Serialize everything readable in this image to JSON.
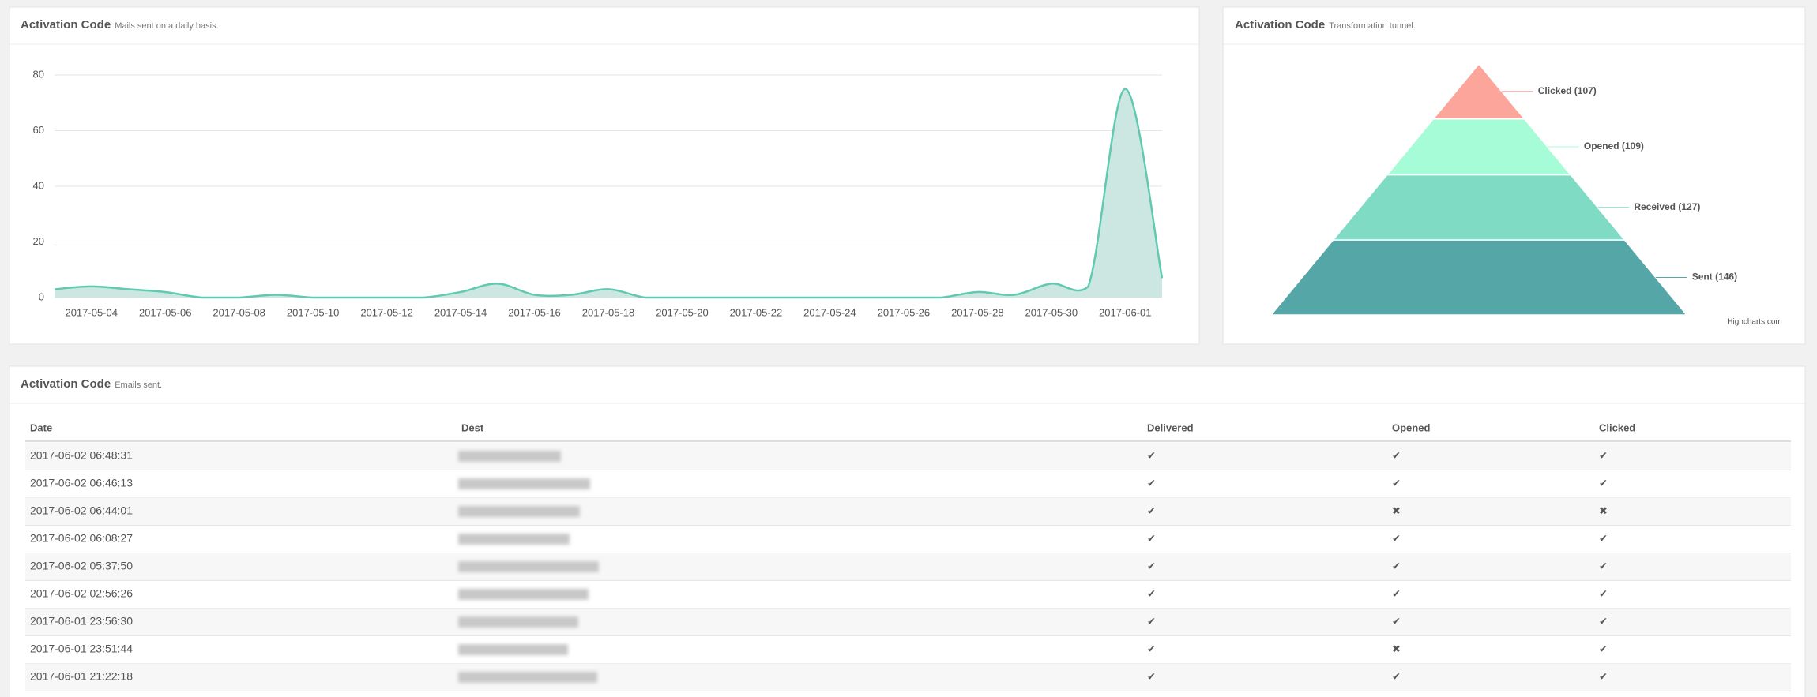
{
  "chart_data": [
    {
      "type": "area",
      "title": "Activation Code",
      "subtitle": "Mails sent on a daily basis.",
      "x": [
        "2017-05-03",
        "2017-05-04",
        "2017-05-05",
        "2017-05-06",
        "2017-05-07",
        "2017-05-08",
        "2017-05-09",
        "2017-05-10",
        "2017-05-11",
        "2017-05-12",
        "2017-05-13",
        "2017-05-14",
        "2017-05-15",
        "2017-05-16",
        "2017-05-17",
        "2017-05-18",
        "2017-05-19",
        "2017-05-20",
        "2017-05-21",
        "2017-05-22",
        "2017-05-23",
        "2017-05-24",
        "2017-05-25",
        "2017-05-26",
        "2017-05-27",
        "2017-05-28",
        "2017-05-29",
        "2017-05-30",
        "2017-05-31",
        "2017-06-01",
        "2017-06-02"
      ],
      "series": [
        {
          "color": "#5fcab0",
          "fill": "#c9e6df",
          "values": [
            3,
            4,
            3,
            2,
            0,
            0,
            1,
            0,
            0,
            0,
            0,
            2,
            5,
            1,
            1,
            3,
            0,
            0,
            0,
            0,
            0,
            0,
            0,
            0,
            0,
            2,
            1,
            5,
            4,
            75,
            7
          ]
        }
      ],
      "xlim": [
        "2017-05-03",
        "2017-06-02"
      ],
      "xticks": [
        "2017-05-04",
        "2017-05-06",
        "2017-05-08",
        "2017-05-10",
        "2017-05-12",
        "2017-05-14",
        "2017-05-16",
        "2017-05-18",
        "2017-05-20",
        "2017-05-22",
        "2017-05-24",
        "2017-05-26",
        "2017-05-28",
        "2017-05-30",
        "2017-06-01"
      ],
      "ylim": [
        0,
        80
      ],
      "yticks": [
        0,
        20,
        40,
        60,
        80
      ],
      "grid": true
    },
    {
      "type": "pyramid",
      "title": "Activation Code",
      "subtitle": "Transformation tunnel.",
      "values": [
        146,
        127,
        109,
        107
      ],
      "value_labels": [
        "Sent (146)",
        "Received (127)",
        "Opened (109)",
        "Clicked (107)"
      ],
      "colors": [
        "#55a6a6",
        "#80dbc4",
        "#a6fcd6",
        "#fca59a"
      ],
      "credits": "Highcharts.com"
    }
  ],
  "table": {
    "title": "Activation Code",
    "subtitle": "Emails sent.",
    "columns": [
      "Date",
      "Dest",
      "Delivered",
      "Opened",
      "Clicked"
    ],
    "status_colors": {
      "✔": "#1fb58f",
      "✖": "#e8505b"
    },
    "rows": [
      {
        "date": "2017-06-02 06:48:31",
        "delivered": "✔",
        "opened": "✔",
        "clicked": "✔"
      },
      {
        "date": "2017-06-02 06:46:13",
        "delivered": "✔",
        "opened": "✔",
        "clicked": "✔"
      },
      {
        "date": "2017-06-02 06:44:01",
        "delivered": "✔",
        "opened": "✖",
        "clicked": "✖"
      },
      {
        "date": "2017-06-02 06:08:27",
        "delivered": "✔",
        "opened": "✔",
        "clicked": "✔"
      },
      {
        "date": "2017-06-02 05:37:50",
        "delivered": "✔",
        "opened": "✔",
        "clicked": "✔"
      },
      {
        "date": "2017-06-02 02:56:26",
        "delivered": "✔",
        "opened": "✔",
        "clicked": "✔"
      },
      {
        "date": "2017-06-01 23:56:30",
        "delivered": "✔",
        "opened": "✔",
        "clicked": "✔"
      },
      {
        "date": "2017-06-01 23:51:44",
        "delivered": "✔",
        "opened": "✖",
        "clicked": "✔"
      },
      {
        "date": "2017-06-01 21:22:18",
        "delivered": "✔",
        "opened": "✔",
        "clicked": "✔"
      }
    ]
  }
}
